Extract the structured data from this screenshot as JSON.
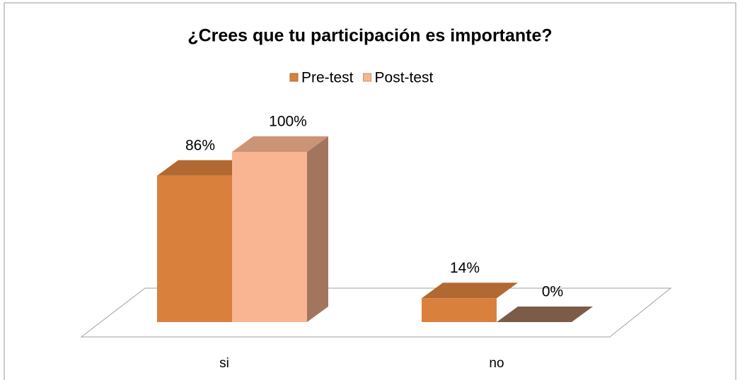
{
  "chart_data": {
    "type": "bar3d",
    "title": "¿Crees que tu participación es importante?",
    "categories": [
      "si",
      "no"
    ],
    "series": [
      {
        "name": "Pre-test",
        "color": "#d9803c",
        "values": [
          86,
          14
        ],
        "value_labels": [
          "86%",
          "14%"
        ]
      },
      {
        "name": "Post-test",
        "color": "#f9b591",
        "values": [
          100,
          0
        ],
        "value_labels": [
          "100%",
          "0%"
        ]
      }
    ],
    "ylim": [
      0,
      100
    ],
    "legend": "top"
  }
}
